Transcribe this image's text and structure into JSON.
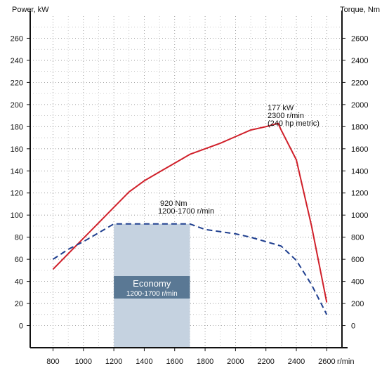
{
  "chart_data": {
    "type": "line",
    "x_unit_label": "r/min",
    "left_axis": {
      "title": "Power, kW",
      "range": [
        -20,
        280
      ],
      "ticks": [
        0,
        20,
        40,
        60,
        80,
        100,
        120,
        140,
        160,
        180,
        200,
        220,
        240,
        260
      ]
    },
    "right_axis": {
      "title": "Torque, Nm",
      "range": [
        -200,
        2800
      ],
      "ticks": [
        0,
        200,
        400,
        600,
        800,
        1000,
        1200,
        1400,
        1600,
        1800,
        2000,
        2200,
        2400,
        2600
      ]
    },
    "x_axis": {
      "range": [
        650,
        2700
      ],
      "ticks": [
        800,
        1000,
        1200,
        1400,
        1600,
        1800,
        2000,
        2200,
        2400,
        2600
      ]
    },
    "grid": true,
    "series": [
      {
        "axis": "left",
        "style": "solid",
        "color": "#d0202a",
        "x": [
          800,
          1000,
          1100,
          1200,
          1300,
          1400,
          1500,
          1600,
          1700,
          1800,
          1900,
          2000,
          2100,
          2200,
          2280,
          2300,
          2400,
          2500,
          2600
        ],
        "values": [
          51,
          79,
          93,
          107,
          121,
          131,
          139,
          147,
          155,
          160,
          165,
          171,
          177,
          180,
          183,
          177,
          150,
          90,
          21
        ]
      },
      {
        "axis": "right",
        "style": "dashed",
        "color": "#1f3f8f",
        "x": [
          800,
          900,
          1000,
          1100,
          1200,
          1300,
          1400,
          1500,
          1600,
          1700,
          1800,
          1900,
          2000,
          2100,
          2200,
          2300,
          2400,
          2500,
          2600
        ],
        "values": [
          600,
          690,
          760,
          840,
          920,
          920,
          920,
          920,
          920,
          920,
          870,
          850,
          830,
          800,
          760,
          720,
          590,
          370,
          100
        ]
      }
    ],
    "economy_band": {
      "x_range": [
        1200,
        1700
      ],
      "label": "Economy",
      "sublabel": "1200-1700 r/min",
      "box_color": "#c5d2e0",
      "label_bar_color": "#5a7894"
    },
    "annotations": [
      {
        "lines": [
          "177 kW",
          "2300 r/min",
          "(240 hp metric)"
        ]
      },
      {
        "lines": [
          "920 Nm",
          "1200-1700 r/min"
        ]
      }
    ]
  }
}
